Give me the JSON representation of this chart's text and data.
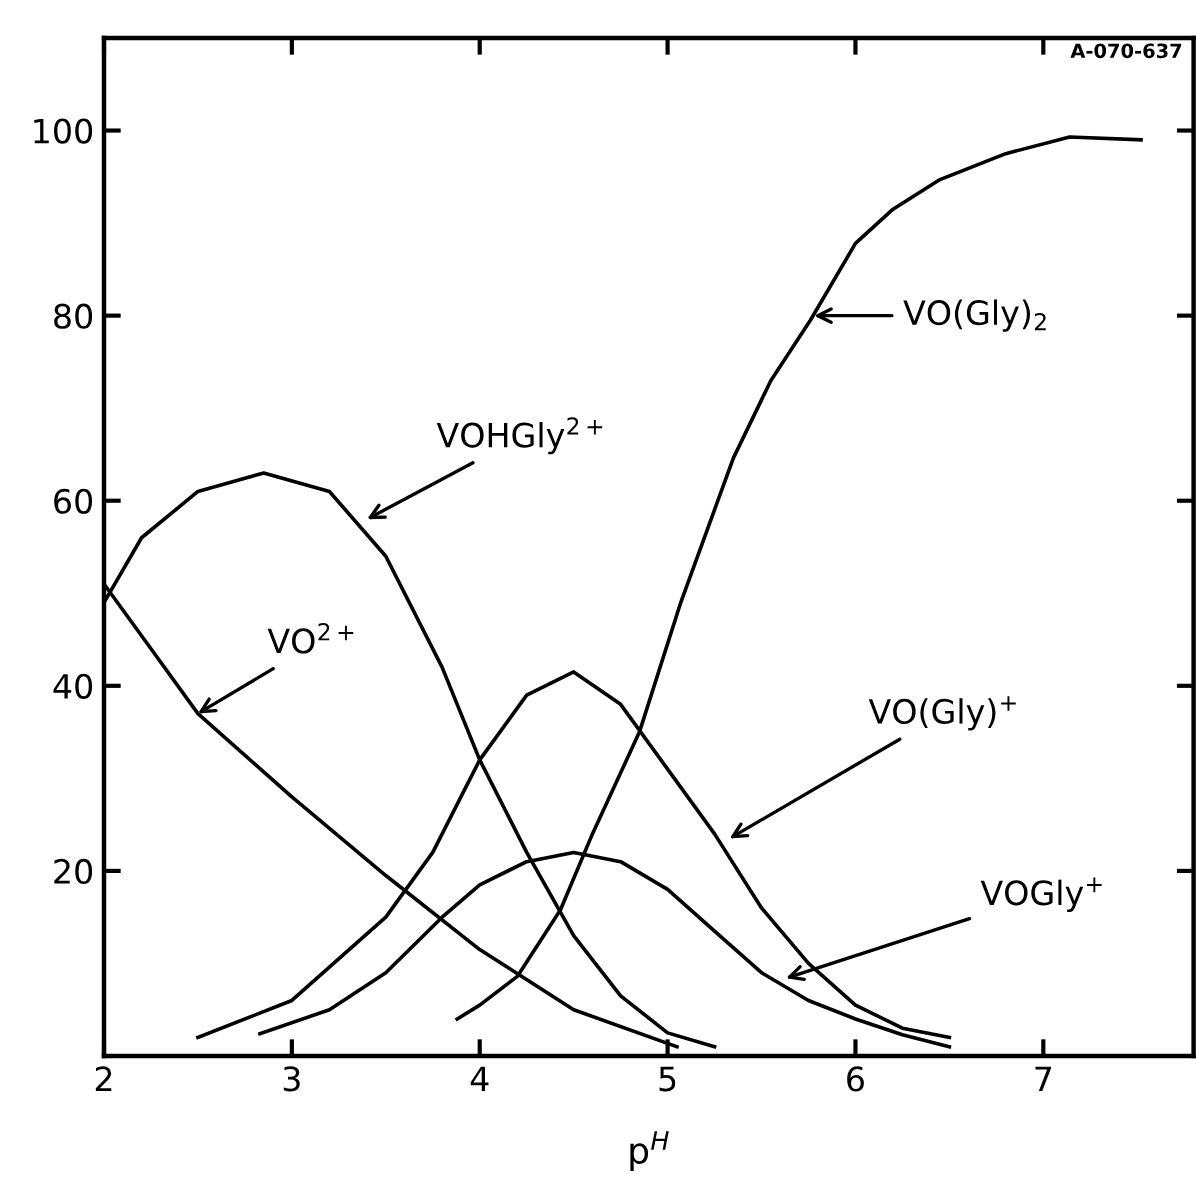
{
  "chart_data": {
    "type": "line",
    "xlabel": "p$^{H}$",
    "xlim": [
      2,
      7.8
    ],
    "xticks": [
      2,
      3,
      4,
      5,
      6,
      7
    ],
    "ylim": [
      0,
      110
    ],
    "yticks": [
      20,
      40,
      60,
      80,
      100
    ],
    "grid": false,
    "legend": false,
    "marker": "none",
    "line_style": "solid",
    "series": [
      {
        "color": "#000000",
        "x": [
          2,
          2.25,
          2.5,
          3,
          3.5,
          4,
          4.5,
          5.05
        ],
        "values": [
          51,
          44,
          37,
          28,
          19.5,
          11.5,
          5,
          1
        ]
      },
      {
        "color": "#000000",
        "x": [
          2,
          2.2,
          2.5,
          2.85,
          3.2,
          3.5,
          3.8,
          4.0,
          4.25,
          4.5,
          4.75,
          5.0,
          5.25
        ],
        "values": [
          49,
          56,
          61,
          63,
          61,
          54,
          42,
          32,
          22,
          13,
          6.5,
          2.5,
          1
        ]
      },
      {
        "color": "#000000",
        "x": [
          2.5,
          3,
          3.5,
          3.75,
          4,
          4.25,
          4.5,
          4.75,
          5,
          5.25,
          5.5,
          5.75,
          6,
          6.25,
          6.5
        ],
        "values": [
          2,
          6,
          15,
          22,
          32,
          39,
          41.5,
          38,
          31,
          24,
          16,
          10,
          5.5,
          3,
          2
        ]
      },
      {
        "color": "#000000",
        "x": [
          2.83,
          3.2,
          3.5,
          3.8,
          4.0,
          4.25,
          4.5,
          4.75,
          5,
          5.25,
          5.5,
          5.75,
          6,
          6.25,
          6.5
        ],
        "values": [
          2.4,
          5,
          9,
          15,
          18.5,
          21,
          22,
          21,
          18,
          13.5,
          9,
          6,
          4,
          2.3,
          1
        ]
      },
      {
        "color": "#000000",
        "x": [
          3.88,
          4.0,
          4.2,
          4.43,
          4.6,
          4.85,
          5.07,
          5.35,
          5.55,
          5.76,
          6,
          6.2,
          6.45,
          6.8,
          7.14,
          7.52
        ],
        "values": [
          4,
          5.5,
          8.6,
          15.8,
          24,
          35,
          49,
          64.6,
          73,
          79.5,
          87.8,
          91.5,
          94.7,
          97.5,
          99.3,
          99
        ]
      }
    ],
    "annotations": [
      {
        "text": "VO$^{2+}$",
        "x": 2.5,
        "y": 37
      },
      {
        "text": "VOHGly$^{2+}$",
        "x": 3.4,
        "y": 58
      },
      {
        "text": "VO(Gly)$_{2}$",
        "x": 5.78,
        "y": 80
      },
      {
        "text": "VO(Gly)$^{+}$",
        "x": 5.33,
        "y": 23.5
      },
      {
        "text": "VOGly$^{+}$",
        "x": 5.63,
        "y": 8.4
      },
      "A-070-637"
    ]
  }
}
